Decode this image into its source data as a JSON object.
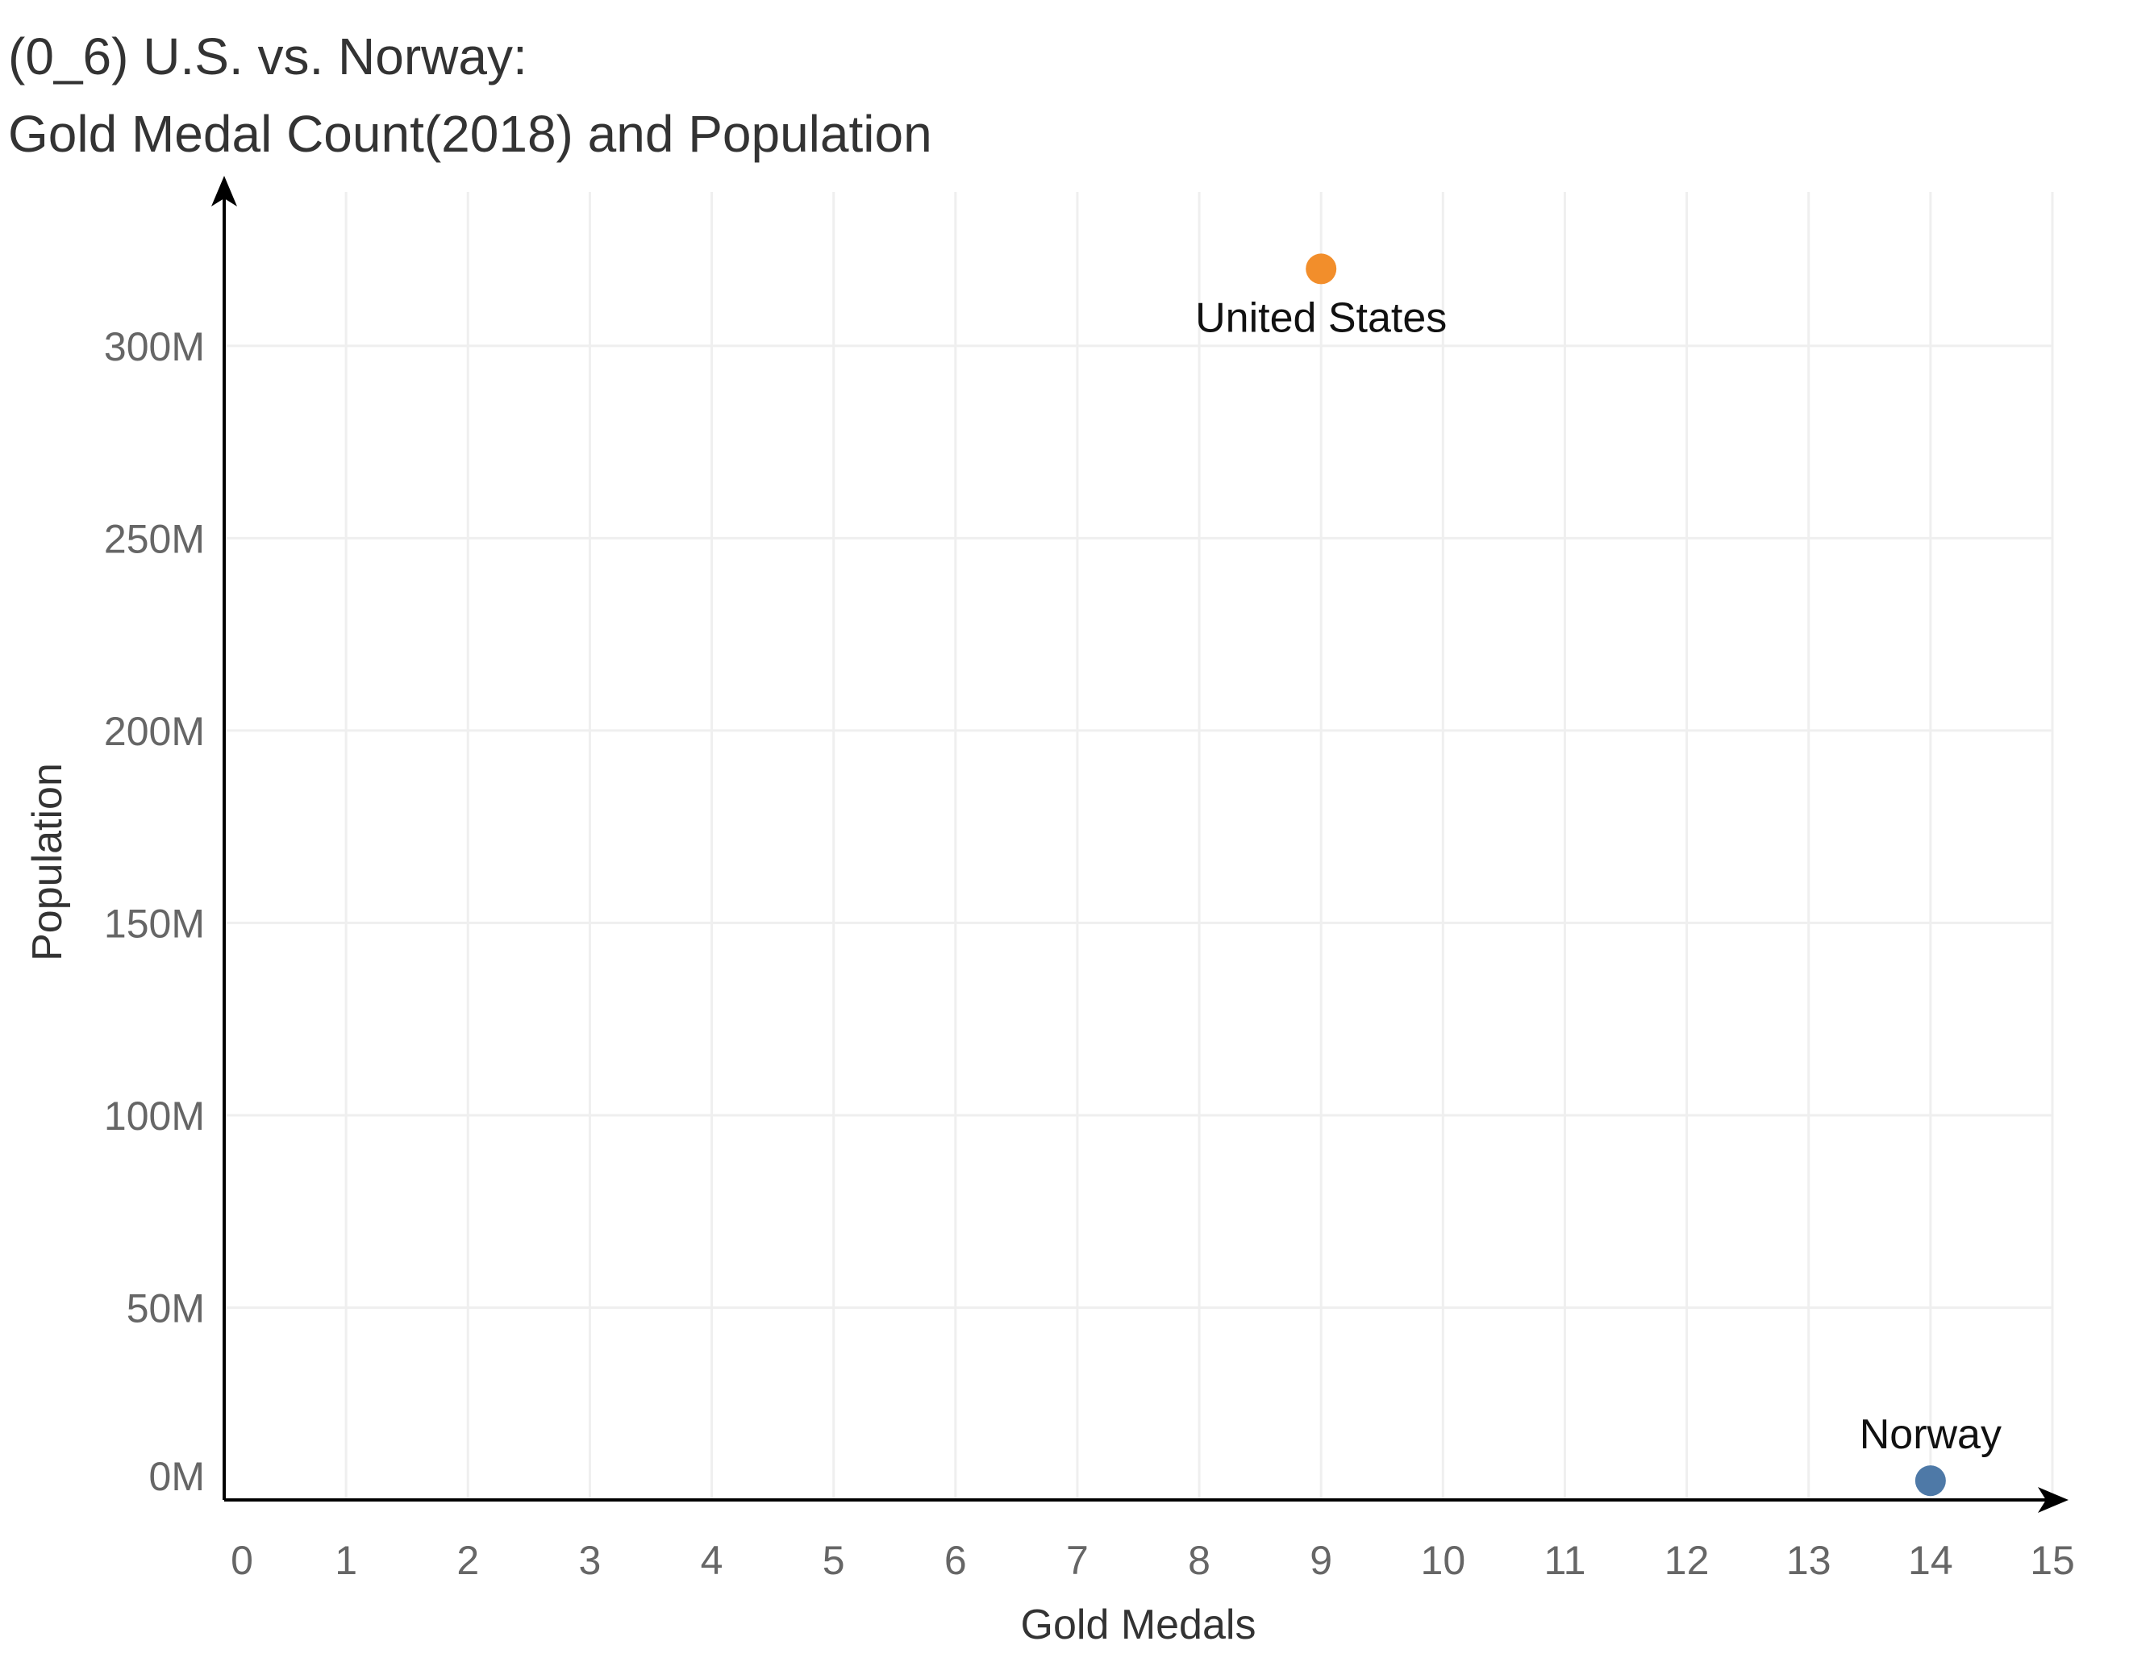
{
  "title": {
    "line1": "(0_6) U.S. vs. Norway:",
    "line2": "Gold Medal Count(2018) and Population"
  },
  "chart_data": {
    "type": "scatter",
    "title": "(0_6) U.S. vs. Norway: Gold Medal Count(2018) and Population",
    "xlabel": "Gold Medals",
    "ylabel": "Population",
    "xlim": [
      0,
      15
    ],
    "ylim": [
      0,
      340000000
    ],
    "x_ticks": [
      0,
      1,
      2,
      3,
      4,
      5,
      6,
      7,
      8,
      9,
      10,
      11,
      12,
      13,
      14,
      15
    ],
    "x_tick_labels": [
      "0",
      "1",
      "2",
      "3",
      "4",
      "5",
      "6",
      "7",
      "8",
      "9",
      "10",
      "11",
      "12",
      "13",
      "14",
      "15"
    ],
    "y_ticks": [
      0,
      50000000,
      100000000,
      150000000,
      200000000,
      250000000,
      300000000
    ],
    "y_tick_labels": [
      "0M",
      "50M",
      "100M",
      "150M",
      "200M",
      "250M",
      "300M"
    ],
    "grid": true,
    "points": [
      {
        "label": "United States",
        "x": 9,
        "y": 320000000,
        "color": "#f28e2b",
        "label_position": "below"
      },
      {
        "label": "Norway",
        "x": 14,
        "y": 5000000,
        "color": "#4e79a7",
        "label_position": "above"
      }
    ]
  }
}
